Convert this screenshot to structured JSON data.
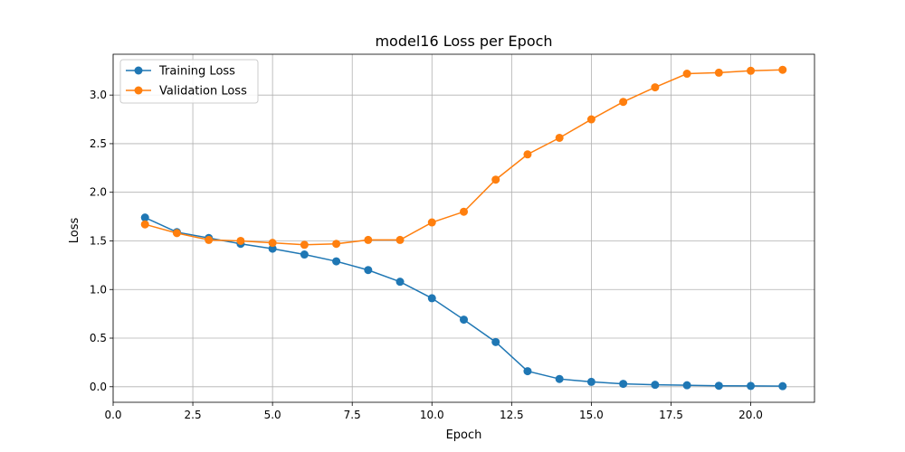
{
  "chart_data": {
    "type": "line",
    "title": "model16 Loss per Epoch",
    "xlabel": "Epoch",
    "ylabel": "Loss",
    "xlim": [
      0.0,
      22.0
    ],
    "ylim": [
      -0.16,
      3.42
    ],
    "xticks": [
      0.0,
      2.5,
      5.0,
      7.5,
      10.0,
      12.5,
      15.0,
      17.5,
      20.0
    ],
    "yticks": [
      0.0,
      0.5,
      1.0,
      1.5,
      2.0,
      2.5,
      3.0
    ],
    "grid": true,
    "legend_position": "upper-left",
    "x": [
      1,
      2,
      3,
      4,
      5,
      6,
      7,
      8,
      9,
      10,
      11,
      12,
      13,
      14,
      15,
      16,
      17,
      18,
      19,
      20,
      21
    ],
    "series": [
      {
        "name": "Training Loss",
        "color": "#1f77b4",
        "marker": "circle",
        "values": [
          1.74,
          1.59,
          1.53,
          1.47,
          1.42,
          1.36,
          1.29,
          1.2,
          1.08,
          0.91,
          0.69,
          0.46,
          0.16,
          0.08,
          0.05,
          0.03,
          0.02,
          0.015,
          0.01,
          0.008,
          0.006
        ]
      },
      {
        "name": "Validation Loss",
        "color": "#ff7f0e",
        "marker": "circle",
        "values": [
          1.67,
          1.58,
          1.51,
          1.5,
          1.48,
          1.46,
          1.47,
          1.51,
          1.51,
          1.69,
          1.8,
          2.13,
          2.39,
          2.56,
          2.75,
          2.93,
          3.08,
          3.22,
          3.23,
          3.25,
          3.26
        ]
      }
    ]
  }
}
